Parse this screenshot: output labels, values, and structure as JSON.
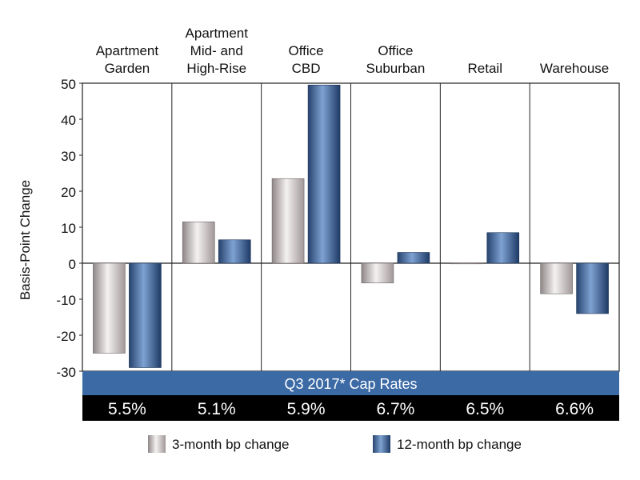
{
  "chart_data": {
    "type": "bar",
    "categories": [
      [
        "Apartment",
        "Garden"
      ],
      [
        "Apartment",
        "Mid- and",
        "High-Rise"
      ],
      [
        "Office",
        "CBD"
      ],
      [
        "Office",
        "Suburban"
      ],
      [
        "Retail"
      ],
      [
        "Warehouse"
      ]
    ],
    "series": [
      {
        "name": "3-month bp change",
        "values": [
          -25,
          11.5,
          23.5,
          -5.5,
          0,
          -8.5
        ],
        "color": "#c9c2c2"
      },
      {
        "name": "12-month bp change",
        "values": [
          -29,
          6.5,
          49.5,
          3,
          8.5,
          -14
        ],
        "color": "#3f6395"
      }
    ],
    "ylabel": "Basis-Point Change",
    "xlabel": "",
    "ylim": [
      -30,
      50
    ],
    "yticks": [
      "50",
      "40",
      "30",
      "20",
      "10",
      "0",
      "-10",
      "-20",
      "-30"
    ],
    "grid": false,
    "legend_position": "bottom",
    "band": {
      "title": "Q3 2017* Cap Rates",
      "title_bg": "#3b6aa5",
      "values_bg": "#000000",
      "values": [
        "5.5%",
        "5.1%",
        "5.9%",
        "6.7%",
        "6.5%",
        "6.6%"
      ]
    }
  }
}
